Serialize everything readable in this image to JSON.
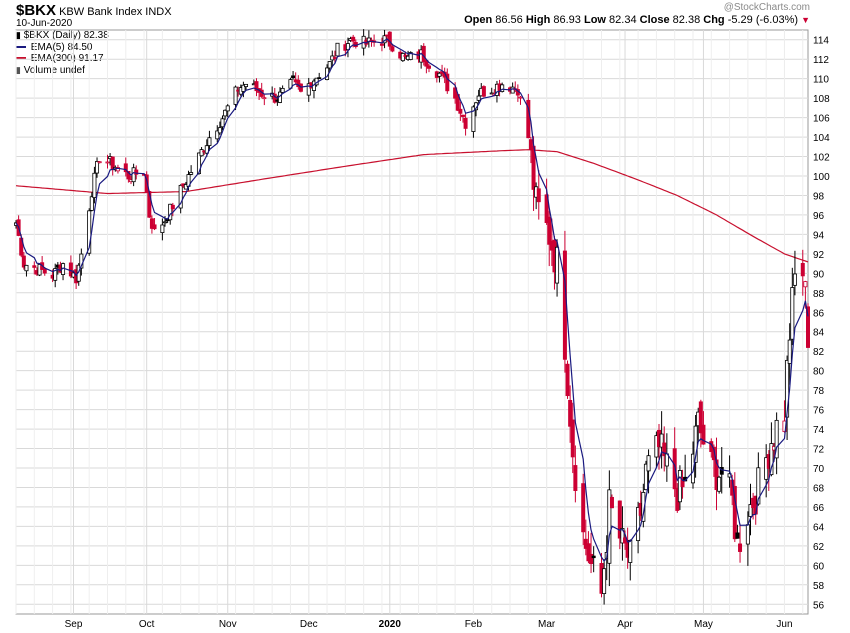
{
  "header": {
    "symbol": "$BKX",
    "description": "KBW Bank Index",
    "exchange": "INDX",
    "date": "10-Jun-2020",
    "open_label": "Open",
    "open": "86.56",
    "high_label": "High",
    "high": "86.93",
    "low_label": "Low",
    "low": "82.34",
    "close_label": "Close",
    "close": "82.38",
    "chg_label": "Chg",
    "chg": "-5.29 (-6.03%)"
  },
  "watermark": "@StockCharts.com",
  "legend": [
    {
      "text": "$BKX (Daily) 82.38",
      "color": "#000000",
      "icon": "candle-icon"
    },
    {
      "text": "EMA(5) 84.50",
      "color": "#1a1a80",
      "icon": "line"
    },
    {
      "text": "EMA(300) 91.17",
      "color": "#c8102e",
      "icon": "line"
    },
    {
      "text": "Volume undef",
      "color": "#555555",
      "icon": "volume-icon"
    }
  ],
  "colors": {
    "up": "#000000",
    "down": "#cc0033",
    "ema5": "#1a1a80",
    "ema300": "#c8102e",
    "grid": "#d9d9d9",
    "axis": "#999999"
  },
  "chart_data": {
    "type": "candlestick",
    "x_range": [
      "2019-08-12",
      "2020-06-10"
    ],
    "ylim": [
      55,
      115
    ],
    "y_ticks": [
      56,
      58,
      60,
      62,
      64,
      66,
      68,
      70,
      72,
      74,
      76,
      78,
      80,
      82,
      84,
      86,
      88,
      90,
      92,
      94,
      96,
      98,
      100,
      102,
      104,
      106,
      108,
      110,
      112,
      114
    ],
    "x_ticks": [
      {
        "label": "Sep",
        "date": "2019-09-03",
        "bold": false
      },
      {
        "label": "Oct",
        "date": "2019-10-01",
        "bold": false
      },
      {
        "label": "Nov",
        "date": "2019-11-01",
        "bold": false
      },
      {
        "label": "Dec",
        "date": "2019-12-02",
        "bold": false
      },
      {
        "label": "2020",
        "date": "2020-01-02",
        "bold": true
      },
      {
        "label": "Feb",
        "date": "2020-02-03",
        "bold": false
      },
      {
        "label": "Mar",
        "date": "2020-03-02",
        "bold": false
      },
      {
        "label": "Apr",
        "date": "2020-04-01",
        "bold": false
      },
      {
        "label": "May",
        "date": "2020-05-01",
        "bold": false
      },
      {
        "label": "Jun",
        "date": "2020-06-01",
        "bold": false
      }
    ],
    "grid": true,
    "close_path": [
      [
        "2019-08-12",
        95.2
      ],
      [
        "2019-08-15",
        91.0
      ],
      [
        "2019-08-20",
        90.5
      ],
      [
        "2019-08-26",
        89.8
      ],
      [
        "2019-08-30",
        91.0
      ],
      [
        "2019-09-04",
        89.5
      ],
      [
        "2019-09-06",
        92.0
      ],
      [
        "2019-09-10",
        98.5
      ],
      [
        "2019-09-13",
        102.0
      ],
      [
        "2019-09-18",
        101.2
      ],
      [
        "2019-09-24",
        100.0
      ],
      [
        "2019-09-30",
        100.5
      ],
      [
        "2019-10-02",
        96.0
      ],
      [
        "2019-10-04",
        94.2
      ],
      [
        "2019-10-08",
        95.5
      ],
      [
        "2019-10-11",
        97.0
      ],
      [
        "2019-10-16",
        99.5
      ],
      [
        "2019-10-21",
        102.0
      ],
      [
        "2019-10-25",
        104.0
      ],
      [
        "2019-10-30",
        106.0
      ],
      [
        "2019-11-05",
        109.0
      ],
      [
        "2019-11-08",
        109.5
      ],
      [
        "2019-11-14",
        108.5
      ],
      [
        "2019-11-20",
        108.0
      ],
      [
        "2019-11-26",
        109.5
      ],
      [
        "2019-11-29",
        108.5
      ],
      [
        "2019-12-04",
        110.0
      ],
      [
        "2019-12-10",
        111.5
      ],
      [
        "2019-12-13",
        113.0
      ],
      [
        "2019-12-18",
        114.0
      ],
      [
        "2019-12-24",
        113.6
      ],
      [
        "2019-12-31",
        114.0
      ],
      [
        "2020-01-03",
        113.5
      ],
      [
        "2020-01-08",
        112.0
      ],
      [
        "2020-01-14",
        112.5
      ],
      [
        "2020-01-21",
        110.5
      ],
      [
        "2020-01-27",
        108.0
      ],
      [
        "2020-01-31",
        105.5
      ],
      [
        "2020-02-05",
        108.5
      ],
      [
        "2020-02-10",
        109.0
      ],
      [
        "2020-02-14",
        109.5
      ],
      [
        "2020-02-20",
        109.0
      ],
      [
        "2020-02-24",
        104.0
      ],
      [
        "2020-02-27",
        97.0
      ],
      [
        "2020-03-03",
        94.0
      ],
      [
        "2020-03-06",
        91.0
      ],
      [
        "2020-03-09",
        83.0
      ],
      [
        "2020-03-12",
        72.0
      ],
      [
        "2020-03-16",
        63.0
      ],
      [
        "2020-03-18",
        61.0
      ],
      [
        "2020-03-20",
        59.0
      ],
      [
        "2020-03-23",
        57.0
      ],
      [
        "2020-03-26",
        66.0
      ],
      [
        "2020-03-31",
        62.0
      ],
      [
        "2020-04-03",
        60.5
      ],
      [
        "2020-04-07",
        65.5
      ],
      [
        "2020-04-09",
        69.5
      ],
      [
        "2020-04-14",
        72.0
      ],
      [
        "2020-04-17",
        70.0
      ],
      [
        "2020-04-21",
        67.5
      ],
      [
        "2020-04-24",
        68.0
      ],
      [
        "2020-04-29",
        74.5
      ],
      [
        "2020-05-04",
        70.0
      ],
      [
        "2020-05-08",
        69.5
      ],
      [
        "2020-05-12",
        66.5
      ],
      [
        "2020-05-14",
        62.0
      ],
      [
        "2020-05-18",
        65.5
      ],
      [
        "2020-05-22",
        68.0
      ],
      [
        "2020-05-27",
        73.0
      ],
      [
        "2020-06-01",
        76.0
      ],
      [
        "2020-06-03",
        84.0
      ],
      [
        "2020-06-05",
        89.5
      ],
      [
        "2020-06-08",
        90.2
      ],
      [
        "2020-06-09",
        87.7
      ],
      [
        "2020-06-10",
        82.38
      ]
    ],
    "ema300_path": [
      [
        "2019-08-12",
        99.0
      ],
      [
        "2019-09-16",
        98.2
      ],
      [
        "2019-10-16",
        98.4
      ],
      [
        "2019-11-15",
        99.7
      ],
      [
        "2019-12-16",
        101.0
      ],
      [
        "2020-01-15",
        102.2
      ],
      [
        "2020-02-14",
        102.6
      ],
      [
        "2020-02-24",
        102.7
      ],
      [
        "2020-03-06",
        102.5
      ],
      [
        "2020-03-20",
        101.3
      ],
      [
        "2020-04-06",
        99.6
      ],
      [
        "2020-04-21",
        98.0
      ],
      [
        "2020-05-06",
        96.0
      ],
      [
        "2020-05-20",
        93.8
      ],
      [
        "2020-06-01",
        92.0
      ],
      [
        "2020-06-10",
        91.17
      ]
    ],
    "last": {
      "open": 86.56,
      "high": 86.93,
      "low": 82.34,
      "close": 82.38
    },
    "series": [
      {
        "name": "$BKX (Daily)",
        "kind": "candlestick"
      },
      {
        "name": "EMA(5)",
        "kind": "line",
        "period": 5
      },
      {
        "name": "EMA(300)",
        "kind": "line",
        "period": 300
      }
    ]
  }
}
